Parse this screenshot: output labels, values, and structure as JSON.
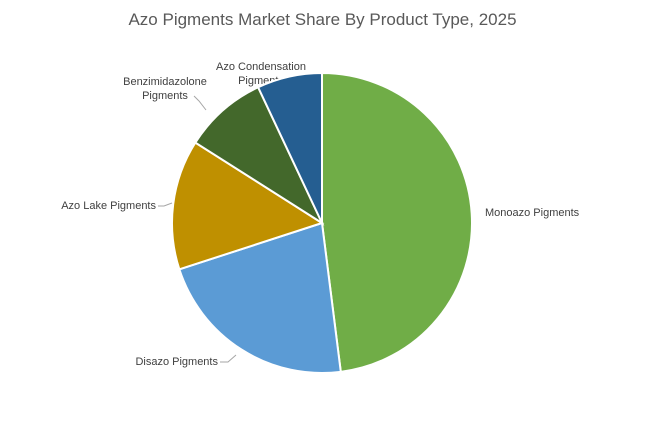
{
  "chart_data": {
    "type": "pie",
    "title": "Azo Pigments Market Share By Product Type, 2025",
    "categories": [
      "Monoazo Pigments",
      "Disazo Pigments",
      "Azo Lake Pigments",
      "Benzimidazolone Pigments",
      "Azo Condensation Pigments"
    ],
    "values": [
      48,
      22,
      14,
      9,
      7
    ],
    "colors": [
      "#70ad47",
      "#5b9bd5",
      "#bf9000",
      "#43682b",
      "#255e91"
    ]
  }
}
